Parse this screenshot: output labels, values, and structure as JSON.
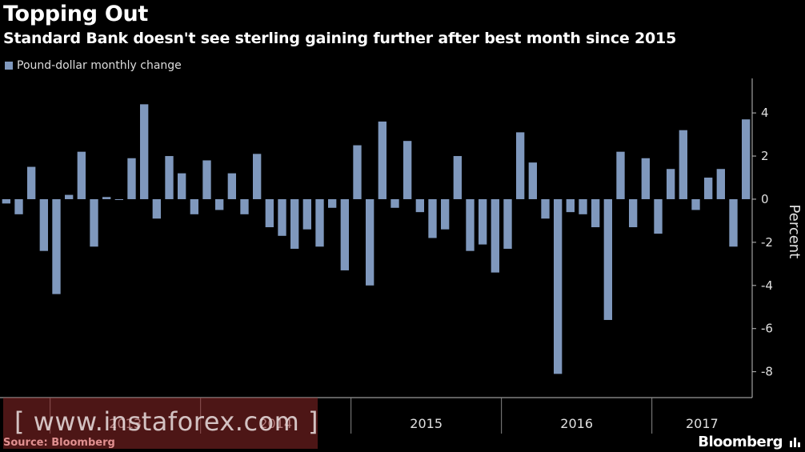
{
  "header": {
    "title": "Topping Out",
    "subtitle": "Standard Bank doesn't see sterling gaining further after best month since 2015"
  },
  "footer": {
    "source": "Source: Bloomberg",
    "brand": "Bloomberg"
  },
  "watermark": {
    "text": "[ www.instaforex.com ]"
  },
  "colors": {
    "bar": "#7f98bd",
    "background": "#000000",
    "axis": "#bfbfbf"
  },
  "chart_data": {
    "type": "bar",
    "title": "Topping Out",
    "subtitle": "Standard Bank doesn't see sterling gaining further after best month since 2015",
    "ylabel": "Percent",
    "ylim": [
      -9.2,
      5.6
    ],
    "yticks": [
      4,
      2,
      0,
      -2,
      -4,
      -6,
      -8
    ],
    "year_labels": [
      "2013",
      "2014",
      "2015",
      "2016",
      "2017"
    ],
    "legend": "top-left",
    "grid": false,
    "series": [
      {
        "name": "Pound-dollar monthly change",
        "start": "2012-09",
        "values": [
          -0.2,
          -0.7,
          1.5,
          -2.4,
          -4.4,
          0.2,
          2.2,
          -2.2,
          0.1,
          0.0,
          1.9,
          4.4,
          -0.9,
          2.0,
          1.2,
          -0.7,
          1.8,
          -0.5,
          1.2,
          -0.7,
          2.1,
          -1.3,
          -1.7,
          -2.3,
          -1.4,
          -2.2,
          -0.4,
          -3.3,
          2.5,
          -4.0,
          3.6,
          -0.4,
          2.7,
          -0.6,
          -1.8,
          -1.4,
          2.0,
          -2.4,
          -2.1,
          -3.4,
          -2.3,
          3.1,
          1.7,
          -0.9,
          -8.1,
          -0.6,
          -0.7,
          -1.3,
          -5.6,
          2.2,
          -1.3,
          1.9,
          -1.6,
          1.4,
          3.2,
          -0.5,
          1.0,
          1.4,
          -2.2,
          3.7
        ]
      }
    ]
  }
}
